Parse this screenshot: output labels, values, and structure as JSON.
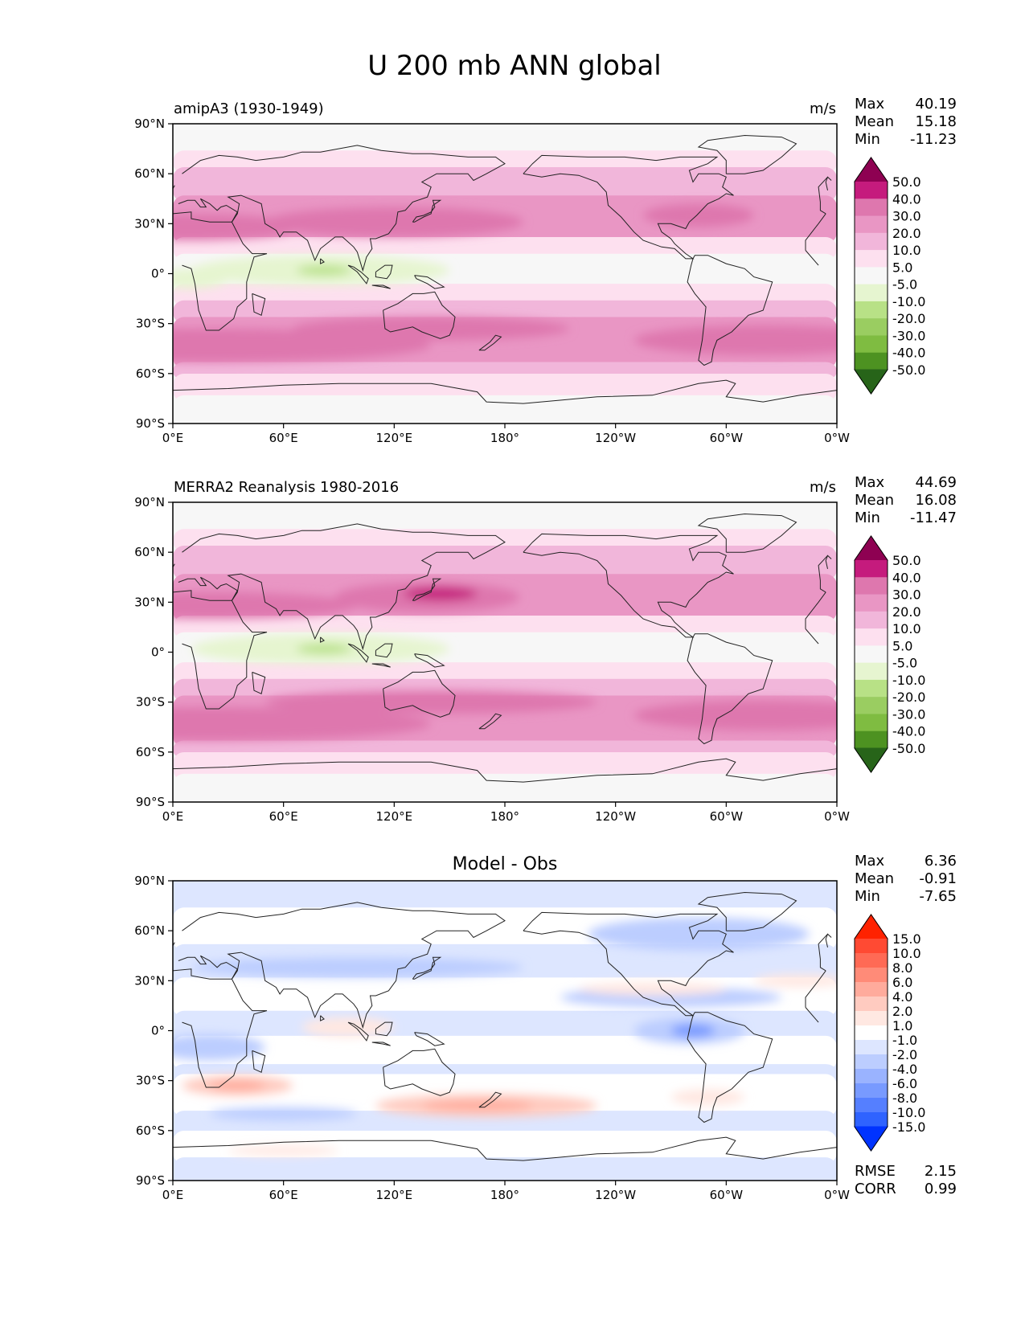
{
  "chart_data": {
    "type": "heatmap",
    "title": "U 200 mb ANN global",
    "x_tick_labels": [
      "0°E",
      "60°E",
      "120°E",
      "180°",
      "120°W",
      "60°W",
      "0°W"
    ],
    "y_tick_labels": [
      "90°N",
      "60°N",
      "30°N",
      "0°",
      "30°S",
      "60°S",
      "90°S"
    ],
    "panels": [
      {
        "id": "test",
        "left_title": "amipA3 (1930-1949)",
        "center_title": "",
        "units": "m/s",
        "stats": [
          {
            "label": "Max",
            "value": "40.19"
          },
          {
            "label": "Mean",
            "value": "15.18"
          },
          {
            "label": "Min",
            "value": "-11.23"
          }
        ],
        "colorbar": {
          "levels": [
            "50.0",
            "40.0",
            "30.0",
            "20.0",
            "10.0",
            "5.0",
            "-5.0",
            "-10.0",
            "-20.0",
            "-30.0",
            "-40.0",
            "-50.0"
          ],
          "colors": [
            "#8e0152",
            "#c51b7d",
            "#de77ae",
            "#e996c4",
            "#f1b6da",
            "#fde0ef",
            "#f7f7f7",
            "#e6f5d0",
            "#b8e186",
            "#9acd61",
            "#7fbc41",
            "#4d9221",
            "#276419"
          ]
        },
        "bands": [
          {
            "lat": [
              90,
              72
            ],
            "value": "-5.0 to 5.0"
          },
          {
            "lat": [
              72,
              62
            ],
            "value": "5.0 to 10.0"
          },
          {
            "lat": [
              62,
              45
            ],
            "value": "10.0 to 20.0"
          },
          {
            "lat": [
              45,
              20
            ],
            "value": "20.0 to 30.0"
          },
          {
            "lat": [
              20,
              10
            ],
            "value": "5.0 to 10.0"
          },
          {
            "lat": [
              10,
              -8
            ],
            "value": "-5.0 to 5.0"
          },
          {
            "lat": [
              -8,
              -18
            ],
            "value": "5.0 to 10.0"
          },
          {
            "lat": [
              -18,
              -28
            ],
            "value": "10.0 to 20.0"
          },
          {
            "lat": [
              -28,
              -55
            ],
            "value": "20.0 to 30.0"
          },
          {
            "lat": [
              -55,
              -62
            ],
            "value": "10.0 to 20.0"
          },
          {
            "lat": [
              -62,
              -75
            ],
            "value": "5.0 to 10.0"
          },
          {
            "lat": [
              -75,
              -90
            ],
            "value": "-5.0 to 5.0"
          }
        ],
        "blobs": [
          {
            "lon": 10,
            "lat": 28,
            "rx": 60,
            "ry": 8,
            "value": "30.0 to 40.0"
          },
          {
            "lon": 120,
            "lat": 31,
            "rx": 70,
            "ry": 9,
            "value": "30.0 to 40.0"
          },
          {
            "lon": 285,
            "lat": 35,
            "rx": 30,
            "ry": 7,
            "value": "30.0 to 40.0"
          },
          {
            "lon": 80,
            "lat": 2,
            "rx": 70,
            "ry": 9,
            "value": "-10.0 to -5.0"
          },
          {
            "lon": 82,
            "lat": 2,
            "rx": 15,
            "ry": 3,
            "value": "-20.0 to -10.0"
          },
          {
            "lon": 10,
            "lat": -3,
            "rx": 20,
            "ry": 6,
            "value": "-10.0 to -5.0"
          },
          {
            "lon": 20,
            "lat": -43,
            "rx": 120,
            "ry": 10,
            "value": "30.0 to 40.0"
          },
          {
            "lon": 140,
            "lat": -33,
            "rx": 75,
            "ry": 7,
            "value": "30.0 to 40.0"
          },
          {
            "lon": 320,
            "lat": -40,
            "rx": 70,
            "ry": 9,
            "value": "30.0 to 40.0"
          }
        ]
      },
      {
        "id": "reference",
        "left_title": "MERRA2 Reanalysis 1980-2016",
        "center_title": "",
        "units": "m/s",
        "stats": [
          {
            "label": "Max",
            "value": "44.69"
          },
          {
            "label": "Mean",
            "value": "16.08"
          },
          {
            "label": "Min",
            "value": "-11.47"
          }
        ],
        "colorbar": {
          "levels": [
            "50.0",
            "40.0",
            "30.0",
            "20.0",
            "10.0",
            "5.0",
            "-5.0",
            "-10.0",
            "-20.0",
            "-30.0",
            "-40.0",
            "-50.0"
          ],
          "colors": [
            "#8e0152",
            "#c51b7d",
            "#de77ae",
            "#e996c4",
            "#f1b6da",
            "#fde0ef",
            "#f7f7f7",
            "#e6f5d0",
            "#b8e186",
            "#9acd61",
            "#7fbc41",
            "#4d9221",
            "#276419"
          ]
        },
        "bands": [
          {
            "lat": [
              90,
              72
            ],
            "value": "-5.0 to 5.0"
          },
          {
            "lat": [
              72,
              62
            ],
            "value": "5.0 to 10.0"
          },
          {
            "lat": [
              62,
              45
            ],
            "value": "10.0 to 20.0"
          },
          {
            "lat": [
              45,
              20
            ],
            "value": "20.0 to 30.0"
          },
          {
            "lat": [
              20,
              10
            ],
            "value": "5.0 to 10.0"
          },
          {
            "lat": [
              10,
              -8
            ],
            "value": "-5.0 to 5.0"
          },
          {
            "lat": [
              -8,
              -18
            ],
            "value": "5.0 to 10.0"
          },
          {
            "lat": [
              -18,
              -28
            ],
            "value": "10.0 to 20.0"
          },
          {
            "lat": [
              -28,
              -55
            ],
            "value": "20.0 to 30.0"
          },
          {
            "lat": [
              -55,
              -62
            ],
            "value": "10.0 to 20.0"
          },
          {
            "lat": [
              -62,
              -75
            ],
            "value": "5.0 to 10.0"
          },
          {
            "lat": [
              -75,
              -90
            ],
            "value": "-5.0 to 5.0"
          }
        ],
        "blobs": [
          {
            "lon": 20,
            "lat": 28,
            "rx": 80,
            "ry": 8,
            "value": "30.0 to 40.0"
          },
          {
            "lon": 138,
            "lat": 33,
            "rx": 50,
            "ry": 9,
            "value": "30.0 to 40.0"
          },
          {
            "lon": 145,
            "lat": 35,
            "rx": 20,
            "ry": 4,
            "value": "40.0 to 50.0"
          },
          {
            "lon": 80,
            "lat": 2,
            "rx": 70,
            "ry": 9,
            "value": "-10.0 to -5.0"
          },
          {
            "lon": 82,
            "lat": 2,
            "rx": 15,
            "ry": 3,
            "value": "-20.0 to -10.0"
          },
          {
            "lon": 20,
            "lat": -43,
            "rx": 120,
            "ry": 10,
            "value": "30.0 to 40.0"
          },
          {
            "lon": 140,
            "lat": -30,
            "rx": 90,
            "ry": 7,
            "value": "30.0 to 40.0"
          },
          {
            "lon": 320,
            "lat": -38,
            "rx": 70,
            "ry": 9,
            "value": "30.0 to 40.0"
          }
        ]
      },
      {
        "id": "diff",
        "left_title": "",
        "center_title": "Model - Obs",
        "units": "",
        "stats": [
          {
            "label": "Max",
            "value": "6.36"
          },
          {
            "label": "Mean",
            "value": "-0.91"
          },
          {
            "label": "Min",
            "value": "-7.65"
          }
        ],
        "extra_stats": [
          {
            "label": "RMSE",
            "value": "2.15"
          },
          {
            "label": "CORR",
            "value": "0.99"
          }
        ],
        "colorbar": {
          "levels": [
            "15.0",
            "10.0",
            "8.0",
            "6.0",
            "4.0",
            "2.0",
            "1.0",
            "-1.0",
            "-2.0",
            "-4.0",
            "-6.0",
            "-8.0",
            "-10.0",
            "-15.0"
          ],
          "colors": [
            "#ff2200",
            "#ff4a33",
            "#ff6a55",
            "#ff8b78",
            "#ffab9c",
            "#ffcbc0",
            "#ffe8e2",
            "#ffffff",
            "#dde6ff",
            "#bccdff",
            "#9ab3ff",
            "#789aff",
            "#557fff",
            "#2f63ff",
            "#0033ff"
          ]
        },
        "bands": [
          {
            "lat": [
              90,
              72
            ],
            "value": "-2.0 to -1.0"
          },
          {
            "lat": [
              72,
              50
            ],
            "value": "-1.0 to 1.0"
          },
          {
            "lat": [
              50,
              30
            ],
            "value": "-2.0 to -1.0"
          },
          {
            "lat": [
              30,
              10
            ],
            "value": "-1.0 to 1.0"
          },
          {
            "lat": [
              10,
              -5
            ],
            "value": "-2.0 to -1.0"
          },
          {
            "lat": [
              -5,
              -22
            ],
            "value": "-1.0 to 1.0"
          },
          {
            "lat": [
              -22,
              -28
            ],
            "value": "-2.0 to -1.0"
          },
          {
            "lat": [
              -28,
              -50
            ],
            "value": "-1.0 to 1.0"
          },
          {
            "lat": [
              -50,
              -62
            ],
            "value": "-2.0 to -1.0"
          },
          {
            "lat": [
              -62,
              -78
            ],
            "value": "-1.0 to 1.0"
          },
          {
            "lat": [
              -78,
              -90
            ],
            "value": "-2.0 to -1.0"
          }
        ],
        "blobs": [
          {
            "lon": 285,
            "lat": 58,
            "rx": 60,
            "ry": 10,
            "value": "-4.0 to -2.0"
          },
          {
            "lon": 100,
            "lat": 38,
            "rx": 90,
            "ry": 6,
            "value": "-4.0 to -2.0"
          },
          {
            "lon": 270,
            "lat": 20,
            "rx": 60,
            "ry": 6,
            "value": "-4.0 to -2.0"
          },
          {
            "lon": 280,
            "lat": 0,
            "rx": 30,
            "ry": 8,
            "value": "-4.0 to -2.0"
          },
          {
            "lon": 282,
            "lat": 0,
            "rx": 12,
            "ry": 4,
            "value": "-8.0 to -6.0"
          },
          {
            "lon": 20,
            "lat": -10,
            "rx": 30,
            "ry": 8,
            "value": "-4.0 to -2.0"
          },
          {
            "lon": 35,
            "lat": -33,
            "rx": 30,
            "ry": 6,
            "value": "2.0 to 4.0"
          },
          {
            "lon": 35,
            "lat": -33,
            "rx": 15,
            "ry": 3,
            "value": "4.0 to 6.0"
          },
          {
            "lon": 170,
            "lat": -45,
            "rx": 60,
            "ry": 7,
            "value": "2.0 to 4.0"
          },
          {
            "lon": 165,
            "lat": -45,
            "rx": 30,
            "ry": 3,
            "value": "4.0 to 6.0"
          },
          {
            "lon": 260,
            "lat": 25,
            "rx": 40,
            "ry": 4,
            "value": "1.0 to 2.0"
          },
          {
            "lon": 340,
            "lat": 30,
            "rx": 25,
            "ry": 4,
            "value": "1.0 to 2.0"
          },
          {
            "lon": 95,
            "lat": 2,
            "rx": 25,
            "ry": 6,
            "value": "1.0 to 2.0"
          },
          {
            "lon": 290,
            "lat": -40,
            "rx": 20,
            "ry": 5,
            "value": "1.0 to 2.0"
          },
          {
            "lon": 60,
            "lat": -50,
            "rx": 40,
            "ry": 4,
            "value": "-4.0 to -2.0"
          },
          {
            "lon": 60,
            "lat": -72,
            "rx": 30,
            "ry": 3,
            "value": "1.0 to 2.0"
          }
        ]
      }
    ]
  }
}
